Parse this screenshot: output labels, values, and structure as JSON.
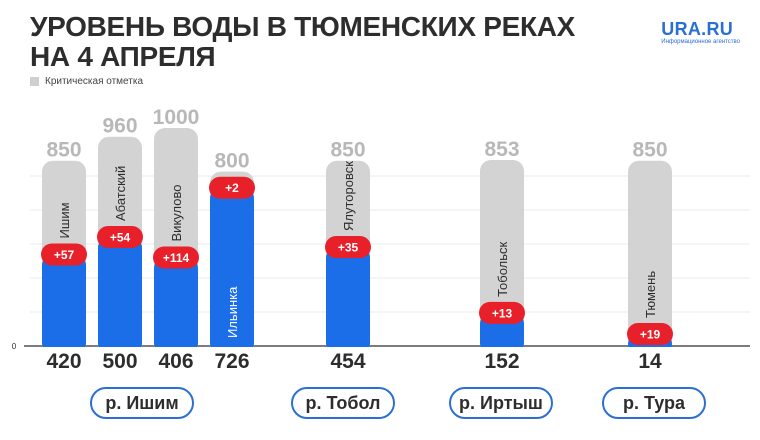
{
  "header": {
    "title_line1": "УРОВЕНЬ ВОДЫ В ТЮМЕНСКИХ РЕКАХ",
    "title_line2": "НА 4 АПРЕЛЯ",
    "logo": "URA.RU",
    "logo_sub": "Информационное агентство"
  },
  "legend": {
    "label": "Критическая отметка",
    "color": "#cfcfcf"
  },
  "colors": {
    "level": "#1c6ee8",
    "critical": "#d3d3d3",
    "change": "#e8202a",
    "text": "#2d2d2d",
    "critical_text": "#b8b8b8"
  },
  "chart_data": {
    "type": "bar",
    "y_zero_label": "0",
    "ylim": [
      0,
      1000
    ],
    "categories": [
      "Ишим",
      "Абатский",
      "Викулово",
      "Ильинка",
      "Ялуторовск",
      "Тобольск",
      "Тюмень"
    ],
    "series": [
      {
        "name": "Критическая отметка",
        "values": [
          850,
          960,
          1000,
          800,
          850,
          853,
          850
        ]
      },
      {
        "values": [
          420,
          500,
          406,
          726,
          454,
          152,
          14
        ]
      }
    ],
    "changes": [
      "+57",
      "+54",
      "+114",
      "+2",
      "+35",
      "+13",
      "+19"
    ],
    "groups": [
      {
        "label": "р. Ишим",
        "members": [
          0,
          1,
          2,
          3
        ]
      },
      {
        "label": "р. Тобол",
        "members": [
          4
        ]
      },
      {
        "label": "р. Иртыш",
        "members": [
          5
        ]
      },
      {
        "label": "р. Тура",
        "members": [
          6
        ]
      }
    ]
  }
}
